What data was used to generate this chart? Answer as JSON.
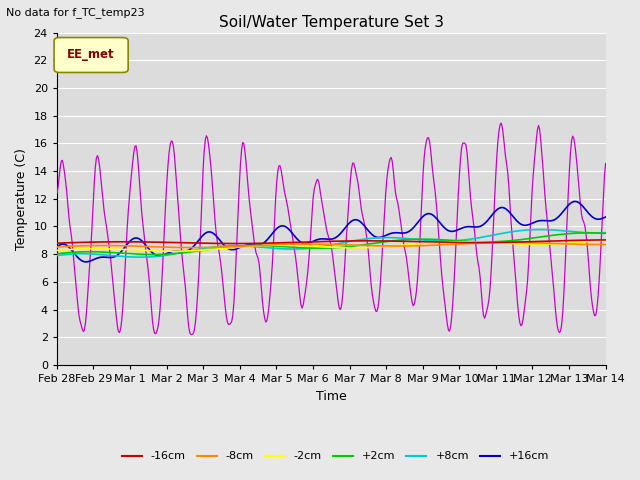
{
  "title": "Soil/Water Temperature Set 3",
  "subtitle": "No data for f_TC_temp23",
  "xlabel": "Time",
  "ylabel": "Temperature (C)",
  "legend_label": "EE_met",
  "ylim": [
    0,
    24
  ],
  "yticks": [
    0,
    2,
    4,
    6,
    8,
    10,
    12,
    14,
    16,
    18,
    20,
    22,
    24
  ],
  "background_color": "#e8e8e8",
  "plot_bg_color": "#dcdcdc",
  "series_colors": {
    "-16cm": "#cc0000",
    "-8cm": "#ff8800",
    "-2cm": "#ffff00",
    "+2cm": "#00cc00",
    "+8cm": "#00cccc",
    "+16cm": "#0000cc",
    "+64cm": "#cc00cc"
  },
  "x_labels": [
    "Feb 28",
    "Feb 29",
    "Mar 1",
    "Mar 2",
    "Mar 3",
    "Mar 4",
    "Mar 5",
    "Mar 6",
    "Mar 7",
    "Mar 8",
    "Mar 9",
    "Mar 10",
    "Mar 11",
    "Mar 12",
    "Mar 13",
    "Mar 14"
  ],
  "figsize": [
    6.4,
    4.8
  ],
  "dpi": 100
}
